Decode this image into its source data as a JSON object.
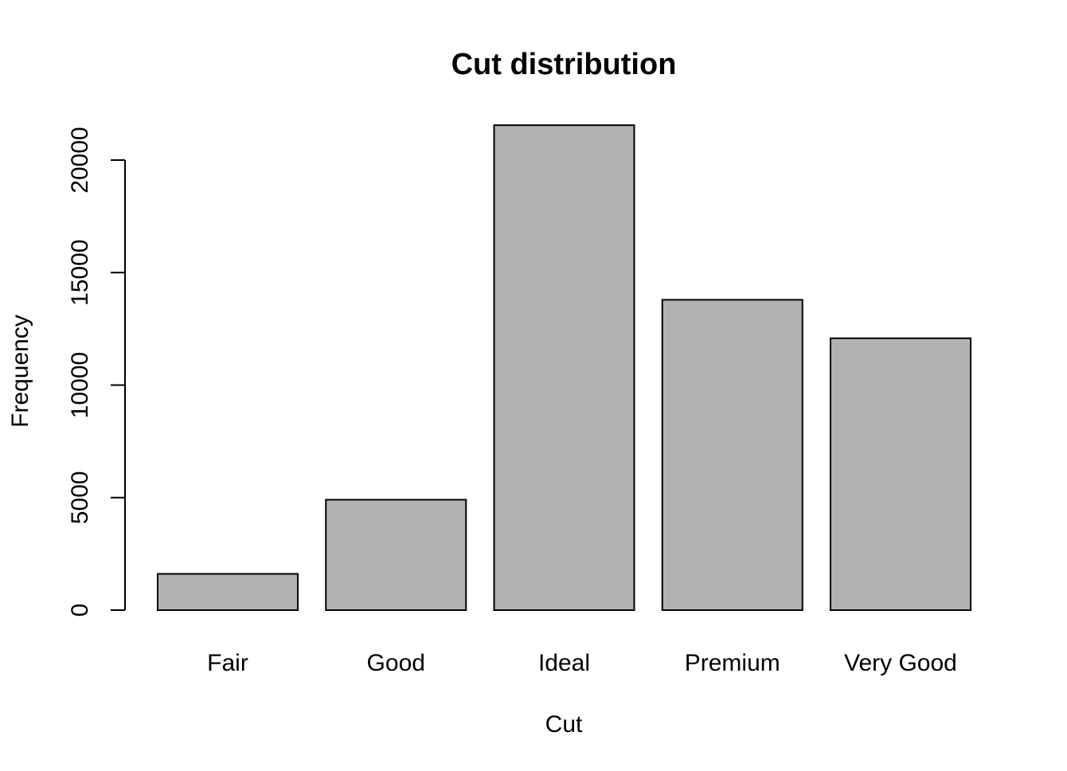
{
  "chart_data": {
    "type": "bar",
    "title": "Cut distribution",
    "xlabel": "Cut",
    "ylabel": "Frequency",
    "categories": [
      "Fair",
      "Good",
      "Ideal",
      "Premium",
      "Very Good"
    ],
    "values": [
      1610,
      4906,
      21551,
      13791,
      12082
    ],
    "ylim": [
      0,
      20000
    ],
    "yticks": [
      0,
      5000,
      10000,
      15000,
      20000
    ],
    "ytick_labels": [
      "0",
      "5000",
      "10000",
      "15000",
      "20000"
    ],
    "bar_color": "#b2b2b2",
    "edge_color": "#000000",
    "grid": false,
    "legend": "none"
  }
}
